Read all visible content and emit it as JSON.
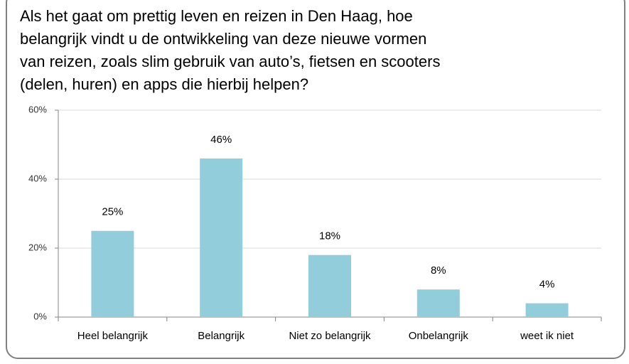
{
  "chart_data": {
    "type": "bar",
    "title": [
      "Als het gaat om prettig leven en reizen in Den Haag, hoe",
      "belangrijk vindt u de ontwikkeling van deze nieuwe vormen",
      "van reizen, zoals slim gebruik van auto’s, fietsen en scooters",
      "(delen, huren) en apps die hierbij helpen?"
    ],
    "categories": [
      "Heel belangrijk",
      "Belangrijk",
      "Niet zo belangrijk",
      "Onbelangrijk",
      "weet ik niet"
    ],
    "values": [
      25,
      46,
      18,
      8,
      4
    ],
    "value_labels": [
      "25%",
      "46%",
      "18%",
      "8%",
      "4%"
    ],
    "color": "#92cddc",
    "ylim": [
      0,
      60
    ],
    "yticks": [
      {
        "value": 0,
        "label": "0%"
      },
      {
        "value": 20,
        "label": "20%"
      },
      {
        "value": 40,
        "label": "40%"
      },
      {
        "value": 60,
        "label": "60%"
      }
    ],
    "grid": true
  }
}
